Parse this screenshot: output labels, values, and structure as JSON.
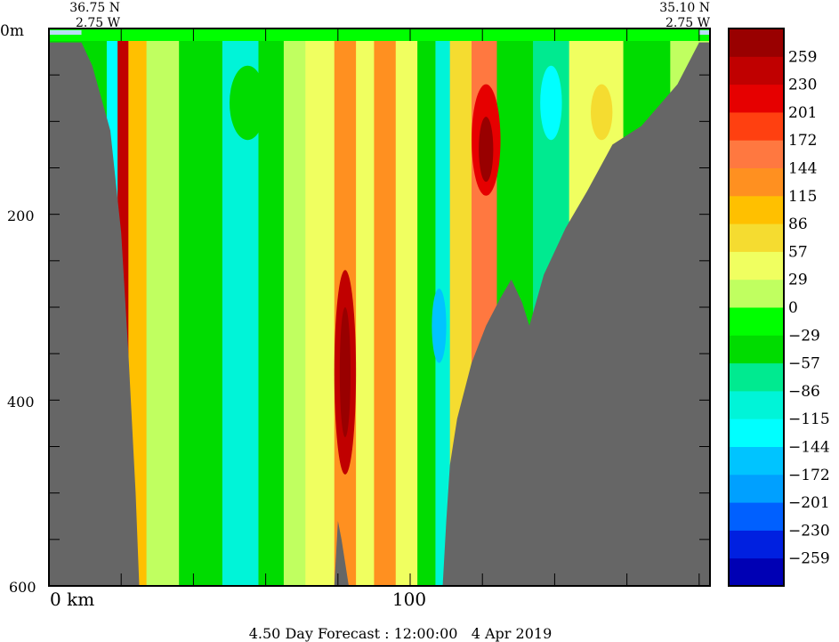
{
  "chart_data": {
    "type": "heatmap",
    "title": "4.50 Day Forecast : 12:00:00   4 Apr 2019",
    "start_point": {
      "lat": "36.75 N",
      "lon": "2.75 W"
    },
    "end_point": {
      "lat": "35.10 N",
      "lon": "2.75 W"
    },
    "xlabel": "km",
    "x_tick_labels": [
      {
        "km": 0,
        "label": "0 km"
      },
      {
        "km": 100,
        "label": "100"
      }
    ],
    "x_range_km": [
      0,
      183
    ],
    "x_tick_step_km": 20,
    "y_tick_labels": [
      {
        "depth": 0,
        "label": "0m"
      },
      {
        "depth": 200,
        "label": "200"
      },
      {
        "depth": 400,
        "label": "400"
      },
      {
        "depth": 600,
        "label": "600"
      }
    ],
    "y_range_m": [
      0,
      600
    ],
    "y_tick_step_m": 100,
    "colorbar": {
      "labels": [
        "259",
        "230",
        "201",
        "172",
        "144",
        "115",
        "86",
        "57",
        "29",
        "0",
        "-29",
        "-57",
        "-86",
        "-115",
        "-144",
        "-172",
        "-201",
        "-230",
        "-259"
      ],
      "bin_width": 28.8,
      "colors_low_to_high": [
        "#0000b4",
        "#0020e0",
        "#0060ff",
        "#00a0ff",
        "#00c4ff",
        "#00ffff",
        "#00f4d8",
        "#00ea90",
        "#00dc00",
        "#00ff00",
        "#c0ff60",
        "#f0ff60",
        "#f5dc30",
        "#ffc000",
        "#ff9020",
        "#ff7840",
        "#ff4010",
        "#e60000",
        "#c00000",
        "#990000"
      ]
    },
    "bands": [
      {
        "km0": 0,
        "km1": 16,
        "value": -40
      },
      {
        "km0": 16,
        "km1": 19,
        "value": -120
      },
      {
        "km0": 19,
        "km1": 22,
        "value": 240
      },
      {
        "km0": 22,
        "km1": 27,
        "value": 90
      },
      {
        "km0": 27,
        "km1": 36,
        "value": 15
      },
      {
        "km0": 36,
        "km1": 48,
        "value": -40
      },
      {
        "km0": 48,
        "km1": 58,
        "value": -95
      },
      {
        "km0": 58,
        "km1": 65,
        "value": -40
      },
      {
        "km0": 65,
        "km1": 71,
        "value": 10
      },
      {
        "km0": 71,
        "km1": 79,
        "value": 40
      },
      {
        "km0": 79,
        "km1": 85,
        "value": 130
      },
      {
        "km0": 85,
        "km1": 90,
        "value": 50
      },
      {
        "km0": 90,
        "km1": 96,
        "value": 120
      },
      {
        "km0": 96,
        "km1": 102,
        "value": 40
      },
      {
        "km0": 102,
        "km1": 107,
        "value": -40
      },
      {
        "km0": 107,
        "km1": 111,
        "value": -100
      },
      {
        "km0": 111,
        "km1": 117,
        "value": 70
      },
      {
        "km0": 117,
        "km1": 124,
        "value": 150
      },
      {
        "km0": 124,
        "km1": 134,
        "value": -50
      },
      {
        "km0": 134,
        "km1": 144,
        "value": -60
      },
      {
        "km0": 144,
        "km1": 159,
        "value": 30
      },
      {
        "km0": 159,
        "km1": 172,
        "value": -40
      },
      {
        "km0": 172,
        "km1": 183,
        "value": 10
      }
    ],
    "features": [
      {
        "km": 82,
        "depth": 370,
        "rkm": 3,
        "rdepth": 110,
        "value": 259
      },
      {
        "km": 82,
        "depth": 370,
        "rkm": 1.5,
        "rdepth": 70,
        "value": 290
      },
      {
        "km": 121,
        "depth": 120,
        "rkm": 4,
        "rdepth": 60,
        "value": 230
      },
      {
        "km": 121,
        "depth": 130,
        "rkm": 2,
        "rdepth": 35,
        "value": 270
      },
      {
        "km": 55,
        "depth": 80,
        "rkm": 5,
        "rdepth": 40,
        "value": -40
      },
      {
        "km": 139,
        "depth": 80,
        "rkm": 3,
        "rdepth": 40,
        "value": -130
      },
      {
        "km": 153,
        "depth": 90,
        "rkm": 3,
        "rdepth": 30,
        "value": 70
      },
      {
        "km": 108,
        "depth": 320,
        "rkm": 2,
        "rdepth": 40,
        "value": -150
      }
    ],
    "bathymetry_left": [
      [
        0,
        15
      ],
      [
        9,
        15
      ],
      [
        12,
        40
      ],
      [
        17,
        110
      ],
      [
        20,
        220
      ],
      [
        22,
        350
      ],
      [
        24,
        500
      ],
      [
        25,
        600
      ],
      [
        0,
        600
      ]
    ],
    "bathymetry_right": [
      [
        183,
        15
      ],
      [
        180,
        15
      ],
      [
        174,
        60
      ],
      [
        164,
        105
      ],
      [
        156,
        125
      ],
      [
        149,
        175
      ],
      [
        143,
        215
      ],
      [
        137,
        265
      ],
      [
        133,
        320
      ],
      [
        131,
        295
      ],
      [
        128,
        270
      ],
      [
        125,
        290
      ],
      [
        121,
        320
      ],
      [
        117,
        360
      ],
      [
        113,
        420
      ],
      [
        111,
        470
      ],
      [
        110,
        530
      ],
      [
        109,
        600
      ],
      [
        183,
        600
      ]
    ],
    "bathymetry_mid": [
      [
        79,
        600
      ],
      [
        80,
        530
      ],
      [
        81,
        550
      ],
      [
        83,
        600
      ]
    ]
  }
}
